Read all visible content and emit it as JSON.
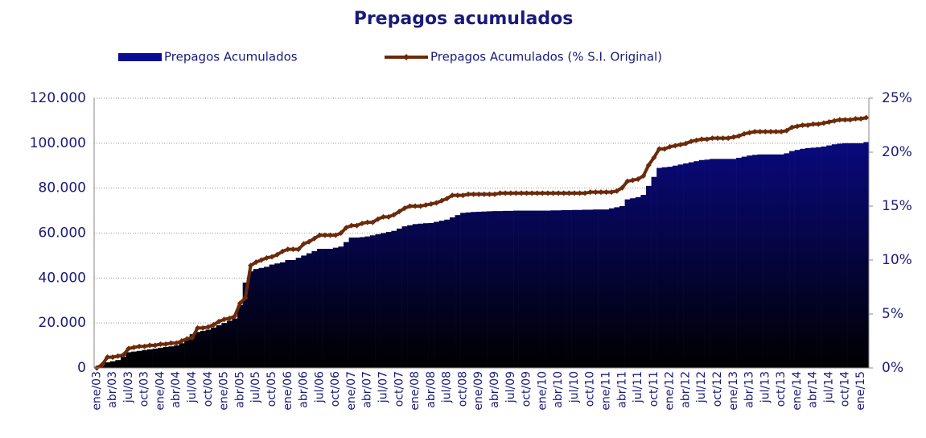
{
  "chart_data": {
    "type": "bar+line",
    "title": "Prepagos acumulados",
    "categories": [
      "ene/03",
      null,
      null,
      "abr/03",
      null,
      null,
      "jul/03",
      null,
      null,
      "oct/03",
      null,
      null,
      "ene/04",
      null,
      null,
      "abr/04",
      null,
      null,
      "jul/04",
      null,
      null,
      "oct/04",
      null,
      null,
      "ene/05",
      null,
      null,
      "abr/05",
      null,
      null,
      "jul/05",
      null,
      null,
      "oct/05",
      null,
      null,
      "ene/06",
      null,
      null,
      "abr/06",
      null,
      null,
      "jul/06",
      null,
      null,
      "oct/06",
      null,
      null,
      "ene/07",
      null,
      null,
      "abr/07",
      null,
      null,
      "jul/07",
      null,
      null,
      "oct/07",
      null,
      null,
      "ene/08",
      null,
      null,
      "abr/08",
      null,
      null,
      "jul/08",
      null,
      null,
      "oct/08",
      null,
      null,
      "ene/09",
      null,
      null,
      "abr/09",
      null,
      null,
      "jul/09",
      null,
      null,
      "oct/09",
      null,
      null,
      "ene/10",
      null,
      null,
      "abr/10",
      null,
      null,
      "jul/10",
      null,
      null,
      "oct/10",
      null,
      null,
      "ene/11",
      null,
      null,
      "abr/11",
      null,
      null,
      "jul/11",
      null,
      null,
      "oct/11",
      null,
      null,
      "ene/12",
      null,
      null,
      "abr/12",
      null,
      null,
      "jul/12",
      null,
      null,
      "oct/12",
      null,
      null,
      "ene/13",
      null,
      null,
      "abr/13",
      null,
      null,
      "jul/13",
      null,
      null,
      "oct/13",
      null,
      null,
      "ene/14",
      null,
      null,
      "abr/14",
      null,
      null,
      "jul/14",
      null,
      null,
      "oct/14",
      null,
      null,
      "ene/15",
      null
    ],
    "series": [
      {
        "name": "Prepagos Acumulados",
        "type": "bar",
        "color": "#0b0b96",
        "values": [
          500,
          1500,
          2500,
          3000,
          3500,
          5000,
          7000,
          7300,
          7600,
          8000,
          8300,
          8600,
          9000,
          9300,
          9600,
          10000,
          11000,
          13000,
          15000,
          16000,
          16500,
          17000,
          18000,
          19000,
          20000,
          21000,
          22000,
          28000,
          38000,
          43000,
          44000,
          44500,
          45000,
          46000,
          46500,
          47000,
          48000,
          48000,
          49000,
          50000,
          51000,
          52000,
          53000,
          53000,
          53000,
          53500,
          54000,
          56000,
          58000,
          58000,
          58200,
          58500,
          59000,
          59500,
          60000,
          60500,
          61000,
          62000,
          63000,
          63500,
          64000,
          64200,
          64400,
          64500,
          65000,
          65500,
          66000,
          67000,
          68000,
          69000,
          69200,
          69400,
          69500,
          69600,
          69700,
          69800,
          69800,
          69900,
          69900,
          70000,
          70000,
          70000,
          70000,
          70000,
          70000,
          70000,
          70100,
          70100,
          70200,
          70200,
          70300,
          70300,
          70400,
          70400,
          70500,
          70500,
          70500,
          71000,
          71500,
          72000,
          75000,
          75500,
          76000,
          77000,
          81000,
          85000,
          89000,
          89300,
          89500,
          90000,
          90500,
          91000,
          91500,
          92000,
          92500,
          92700,
          93000,
          93000,
          93000,
          93000,
          93000,
          93500,
          94000,
          94500,
          94800,
          95000,
          95000,
          95000,
          95000,
          95000,
          95500,
          96500,
          97000,
          97500,
          97800,
          98000,
          98200,
          98500,
          99000,
          99500,
          99800,
          100000,
          100000,
          100000,
          100000,
          100500
        ]
      },
      {
        "name": "Prepagos Acumulados (% S.I. Original)",
        "type": "line",
        "axis": "y2",
        "color": "#6b2a0a",
        "values": [
          0,
          0.3,
          1.0,
          1.0,
          1.1,
          1.2,
          1.8,
          1.9,
          2.0,
          2.0,
          2.1,
          2.1,
          2.2,
          2.2,
          2.3,
          2.3,
          2.5,
          2.7,
          2.8,
          3.7,
          3.7,
          3.8,
          4.0,
          4.3,
          4.5,
          4.6,
          4.8,
          6.0,
          6.5,
          9.5,
          9.8,
          10.0,
          10.2,
          10.3,
          10.5,
          10.8,
          11.0,
          11.0,
          11.0,
          11.5,
          11.7,
          12.0,
          12.3,
          12.3,
          12.3,
          12.3,
          12.5,
          13.0,
          13.2,
          13.2,
          13.4,
          13.5,
          13.5,
          13.8,
          14.0,
          14.0,
          14.2,
          14.5,
          14.8,
          15.0,
          15.0,
          15.0,
          15.1,
          15.2,
          15.3,
          15.5,
          15.7,
          16.0,
          16.0,
          16.0,
          16.1,
          16.1,
          16.1,
          16.1,
          16.1,
          16.1,
          16.2,
          16.2,
          16.2,
          16.2,
          16.2,
          16.2,
          16.2,
          16.2,
          16.2,
          16.2,
          16.2,
          16.2,
          16.2,
          16.2,
          16.2,
          16.2,
          16.2,
          16.3,
          16.3,
          16.3,
          16.3,
          16.3,
          16.4,
          16.7,
          17.3,
          17.4,
          17.5,
          17.8,
          18.8,
          19.5,
          20.3,
          20.3,
          20.5,
          20.6,
          20.7,
          20.8,
          21.0,
          21.1,
          21.2,
          21.2,
          21.3,
          21.3,
          21.3,
          21.3,
          21.4,
          21.5,
          21.7,
          21.8,
          21.9,
          21.9,
          21.9,
          21.9,
          21.9,
          21.9,
          22.0,
          22.3,
          22.4,
          22.5,
          22.5,
          22.6,
          22.6,
          22.7,
          22.8,
          22.9,
          23.0,
          23.0,
          23.0,
          23.1,
          23.1,
          23.2
        ]
      }
    ],
    "ylim": [
      0,
      120000
    ],
    "yticks": [
      0,
      {
        "value": 20000,
        "label": "20.000"
      },
      {
        "value": 40000,
        "label": "40.000"
      },
      {
        "value": 60000,
        "label": "60.000"
      },
      {
        "value": 80000,
        "label": "80.000"
      },
      {
        "value": 100000,
        "label": "100.000"
      },
      {
        "value": 120000,
        "label": "120.000"
      }
    ],
    "y2lim": [
      0,
      25
    ],
    "y2ticks": [
      {
        "value": 0,
        "label": "0%"
      },
      {
        "value": 5,
        "label": "5%"
      },
      {
        "value": 10,
        "label": "10%"
      },
      {
        "value": 15,
        "label": "15%"
      },
      {
        "value": 20,
        "label": "20%"
      },
      {
        "value": 25,
        "label": "25%"
      }
    ],
    "grid": true,
    "legend": "top"
  }
}
